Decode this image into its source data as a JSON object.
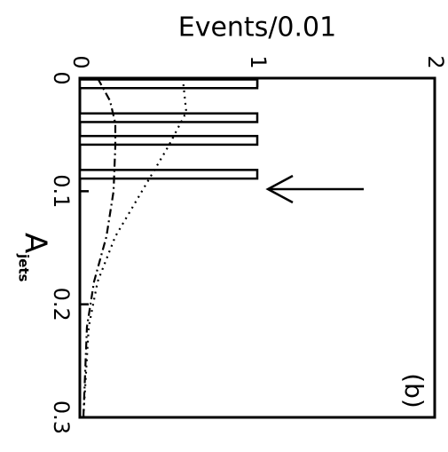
{
  "chart_data": {
    "type": "histogram",
    "orientation": "rotated",
    "title": "Events/0.01",
    "x_label": "A",
    "x_label_sub": "jets",
    "annotation": "(b)",
    "bins": [
      0,
      0.01,
      0.02,
      0.03,
      0.04,
      0.05,
      0.06,
      0.07,
      0.08,
      0.09,
      0.1
    ],
    "counts": [
      1,
      0,
      0,
      1,
      0,
      1,
      0,
      0,
      1,
      0
    ],
    "xlim": [
      0,
      0.3
    ],
    "xticks": [
      0,
      0.1,
      0.2,
      0.3
    ],
    "ylim": [
      0,
      2
    ],
    "yticks": [
      0,
      1,
      2
    ],
    "series": [
      {
        "style": "dashed",
        "color": "#000000",
        "x": [
          0,
          0.02,
          0.04,
          0.06,
          0.1,
          0.14,
          0.18,
          0.22,
          0.3
        ],
        "values": [
          0.1,
          0.17,
          0.2,
          0.2,
          0.19,
          0.15,
          0.08,
          0.04,
          0.02
        ]
      },
      {
        "style": "dotted",
        "color": "#000000",
        "x": [
          0,
          0.03,
          0.06,
          0.1,
          0.14,
          0.18,
          0.22,
          0.3
        ],
        "values": [
          0.58,
          0.6,
          0.5,
          0.35,
          0.2,
          0.1,
          0.05,
          0.02
        ]
      }
    ]
  }
}
